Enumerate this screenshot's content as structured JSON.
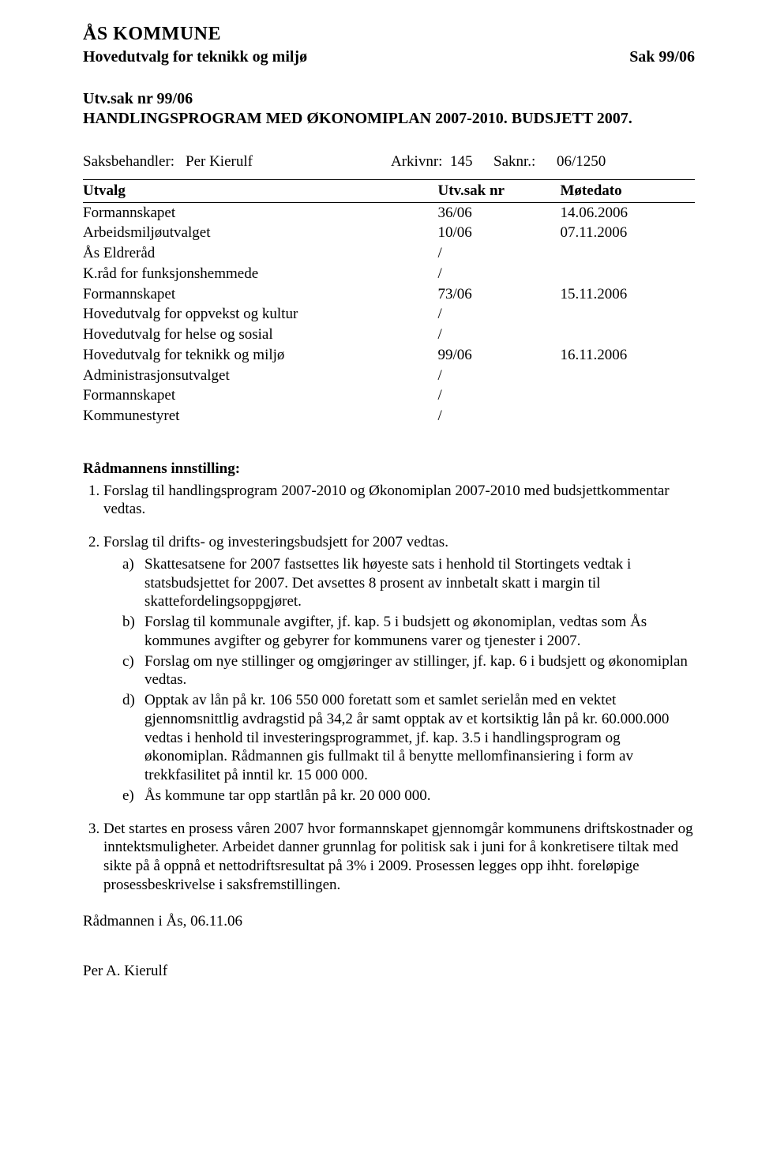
{
  "header": {
    "kommune": "ÅS KOMMUNE",
    "hovedutvalg": "Hovedutvalg for teknikk og miljø",
    "sak": "Sak 99/06"
  },
  "utv": {
    "nr": "Utv.sak nr 99/06",
    "title": "HANDLINGSPROGRAM MED ØKONOMIPLAN 2007-2010. BUDSJETT 2007."
  },
  "saksbehandler": {
    "label": "Saksbehandler:",
    "name": "Per Kierulf",
    "arkiv_label": "Arkivnr:",
    "arkiv": "145",
    "saknr_label": "Saknr.:",
    "saknr": "06/1250"
  },
  "table": {
    "columns": [
      "Utvalg",
      "Utv.sak nr",
      "Møtedato"
    ],
    "rows": [
      [
        "Formannskapet",
        "36/06",
        "14.06.2006"
      ],
      [
        "Arbeidsmiljøutvalget",
        "10/06",
        "07.11.2006"
      ],
      [
        "Ås Eldreråd",
        "/",
        ""
      ],
      [
        "K.råd for funksjonshemmede",
        "/",
        ""
      ],
      [
        "Formannskapet",
        "73/06",
        "15.11.2006"
      ],
      [
        "Hovedutvalg for oppvekst og kultur",
        "/",
        ""
      ],
      [
        "Hovedutvalg for helse og sosial",
        "/",
        ""
      ],
      [
        "Hovedutvalg for teknikk og miljø",
        "99/06",
        "16.11.2006"
      ],
      [
        "Administrasjonsutvalget",
        "/",
        ""
      ],
      [
        "Formannskapet",
        "/",
        ""
      ],
      [
        "Kommunestyret",
        "/",
        ""
      ]
    ]
  },
  "innstilling": {
    "heading": "Rådmannens innstilling:",
    "item1": "Forslag til handlingsprogram 2007-2010 og Økonomiplan 2007-2010 med budsjettkommentar vedtas.",
    "item2_intro": "Forslag til drifts- og investeringsbudsjett for 2007 vedtas.",
    "sub": {
      "a": "Skattesatsene for 2007 fastsettes lik høyeste sats i henhold til Stortingets vedtak i statsbudsjettet for 2007. Det avsettes 8 prosent av innbetalt skatt i margin til skattefordelingsoppgjøret.",
      "b": "Forslag til kommunale avgifter, jf. kap. 5 i budsjett og økonomiplan, vedtas som Ås kommunes avgifter og gebyrer for kommunens varer og tjenester i 2007.",
      "c": "Forslag om nye stillinger og omgjøringer av stillinger, jf. kap. 6 i budsjett og økonomiplan vedtas.",
      "d": "Opptak av lån på kr. 106 550 000 foretatt som et samlet serielån med en vektet gjennomsnittlig avdragstid på 34,2 år samt opptak av et kortsiktig lån på kr. 60.000.000 vedtas i henhold til investeringsprogrammet, jf. kap. 3.5 i handlingsprogram og økonomiplan. Rådmannen gis fullmakt til å benytte mellomfinansiering i form av trekkfasilitet på inntil kr. 15 000 000.",
      "e": "Ås kommune tar opp startlån på kr. 20 000 000."
    },
    "item3": "Det startes en prosess våren 2007 hvor formannskapet gjennomgår kommunens driftskostnader og inntektsmuligheter. Arbeidet danner grunnlag for politisk sak i juni for å konkretisere tiltak med sikte på å oppnå et nettodriftsresultat på 3% i 2009.  Prosessen legges opp ihht. foreløpige prosessbeskrivelse i saksfremstillingen."
  },
  "signature": {
    "line": "Rådmannen i Ås, 06.11.06",
    "name": "Per A. Kierulf"
  },
  "markers": {
    "a": "a)",
    "b": "b)",
    "c": "c)",
    "d": "d)",
    "e": "e)"
  }
}
